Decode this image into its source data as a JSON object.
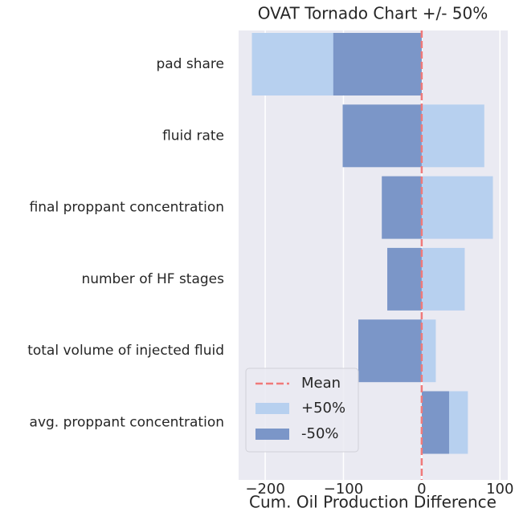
{
  "chart_data": {
    "type": "barh",
    "title": "OVAT Tornado Chart +/- 50%",
    "xlabel": "Cum. Oil Production Difference",
    "categories": [
      "pad share",
      "fluid rate",
      "final proppant concentration",
      "number of HF stages",
      "total volume of injected fluid",
      "avg. proppant concentration"
    ],
    "series": [
      {
        "name": "+50%",
        "color": "#b7d0ef",
        "values": [
          -217,
          80,
          91,
          55,
          18,
          59
        ]
      },
      {
        "name": "-50%",
        "color": "#7b96c8",
        "values": [
          -113,
          -101,
          -51,
          -44,
          -81,
          35
        ]
      }
    ],
    "mean": {
      "name": "Mean",
      "value": 0,
      "color": "#f07a7a"
    },
    "xlim": [
      -234,
      110
    ],
    "xticks": [
      {
        "value": -200,
        "label": "−200"
      },
      {
        "value": -100,
        "label": "−100"
      },
      0,
      100
    ],
    "grid": true,
    "legend": "lower left"
  }
}
